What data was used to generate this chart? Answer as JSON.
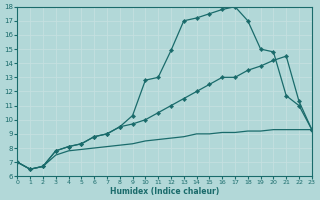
{
  "xlabel": "Humidex (Indice chaleur)",
  "xlim": [
    0,
    23
  ],
  "ylim": [
    6,
    18
  ],
  "xticks": [
    0,
    1,
    2,
    3,
    4,
    5,
    6,
    7,
    8,
    9,
    10,
    11,
    12,
    13,
    14,
    15,
    16,
    17,
    18,
    19,
    20,
    21,
    22,
    23
  ],
  "yticks": [
    6,
    7,
    8,
    9,
    10,
    11,
    12,
    13,
    14,
    15,
    16,
    17,
    18
  ],
  "bg_color": "#b2d8d8",
  "grid_color": "#d0eaea",
  "line_color": "#1a6b6b",
  "curve1_x": [
    0,
    1,
    2,
    3,
    4,
    5,
    6,
    7,
    8,
    9,
    10,
    11,
    12,
    13,
    14,
    15,
    16,
    17,
    18,
    19,
    20,
    21,
    22,
    23
  ],
  "curve1_y": [
    7.0,
    6.5,
    6.7,
    7.8,
    8.1,
    8.3,
    8.8,
    9.0,
    9.5,
    10.3,
    12.8,
    13.0,
    14.9,
    17.0,
    17.2,
    17.5,
    17.8,
    18.0,
    17.0,
    15.0,
    14.8,
    11.7,
    11.0,
    9.3
  ],
  "curve2_x": [
    0,
    1,
    2,
    3,
    4,
    5,
    6,
    7,
    8,
    9,
    10,
    11,
    12,
    13,
    14,
    15,
    16,
    17,
    18,
    19,
    20,
    21,
    22,
    23
  ],
  "curve2_y": [
    7.0,
    6.5,
    6.7,
    7.8,
    8.1,
    8.3,
    8.8,
    9.0,
    9.5,
    9.7,
    10.0,
    10.5,
    11.0,
    11.5,
    12.0,
    12.5,
    13.0,
    13.0,
    13.5,
    13.8,
    14.2,
    14.5,
    11.3,
    9.3
  ],
  "curve3_x": [
    0,
    1,
    2,
    3,
    4,
    5,
    6,
    7,
    8,
    9,
    10,
    11,
    12,
    13,
    14,
    15,
    16,
    17,
    18,
    19,
    20,
    21,
    22,
    23
  ],
  "curve3_y": [
    7.0,
    6.5,
    6.7,
    7.5,
    7.8,
    7.9,
    8.0,
    8.1,
    8.2,
    8.3,
    8.5,
    8.6,
    8.7,
    8.8,
    9.0,
    9.0,
    9.1,
    9.1,
    9.2,
    9.2,
    9.3,
    9.3,
    9.3,
    9.3
  ]
}
